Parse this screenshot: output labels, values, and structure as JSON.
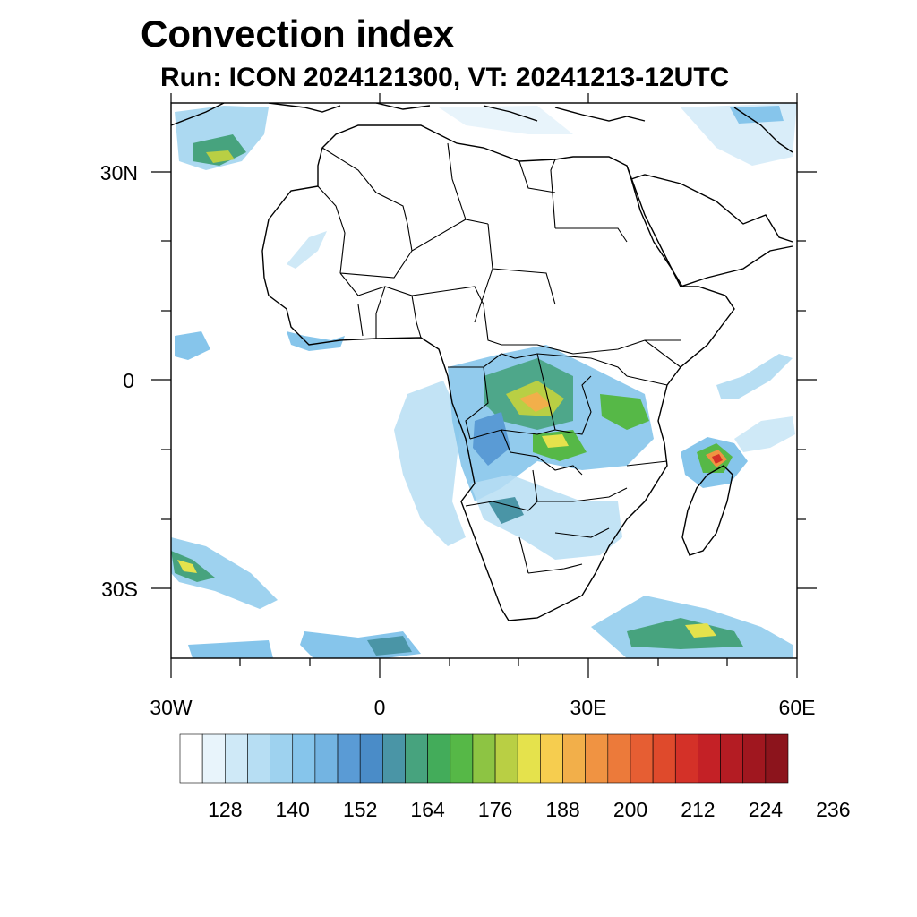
{
  "title": "Convection index",
  "subtitle": "Run: ICON 2024121300,  VT: 20241213-12UTC",
  "map": {
    "region": "Africa",
    "lon_range": [
      -30,
      60
    ],
    "lat_range": [
      -40,
      40
    ],
    "lon_labels": [
      "30W",
      "0",
      "30E",
      "60E"
    ],
    "lat_labels": [
      "30N",
      "0",
      "30S"
    ]
  },
  "colorbar": {
    "colors": [
      "#ffffff",
      "#e8f4fb",
      "#cfe9f7",
      "#b7def3",
      "#9ed2ef",
      "#86c5eb",
      "#73b4e2",
      "#5a9bd5",
      "#4a8cc8",
      "#4a95a6",
      "#47a37e",
      "#43ac5a",
      "#56b847",
      "#8dc443",
      "#b9cf44",
      "#e5e24c",
      "#f6cd4f",
      "#f2af4a",
      "#f09342",
      "#ec7a3a",
      "#e65e33",
      "#df4a2c",
      "#d43128",
      "#c42126",
      "#b41c23",
      "#a0171f",
      "#8c141c"
    ],
    "tick_labels": [
      "128",
      "140",
      "152",
      "164",
      "176",
      "188",
      "200",
      "212",
      "224",
      "236"
    ]
  }
}
